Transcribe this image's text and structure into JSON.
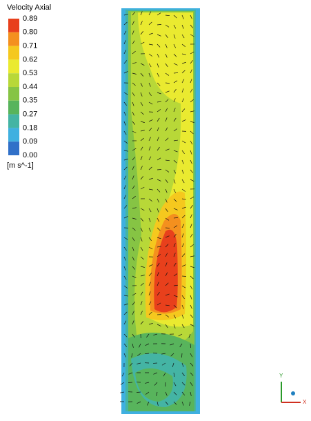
{
  "legend": {
    "title": "Velocity Axial",
    "labels": [
      "0.89",
      "0.80",
      "0.71",
      "0.62",
      "0.53",
      "0.44",
      "0.35",
      "0.27",
      "0.18",
      "0.09",
      "0.00"
    ],
    "colors": [
      "#e8401c",
      "#f4901e",
      "#f5c81e",
      "#eaea30",
      "#b8d838",
      "#86c444",
      "#58b45c",
      "#44b4a4",
      "#40b0e0",
      "#3070c8"
    ],
    "unit": "[m s^-1]"
  },
  "axes": {
    "y": "Y",
    "x": "X"
  }
}
